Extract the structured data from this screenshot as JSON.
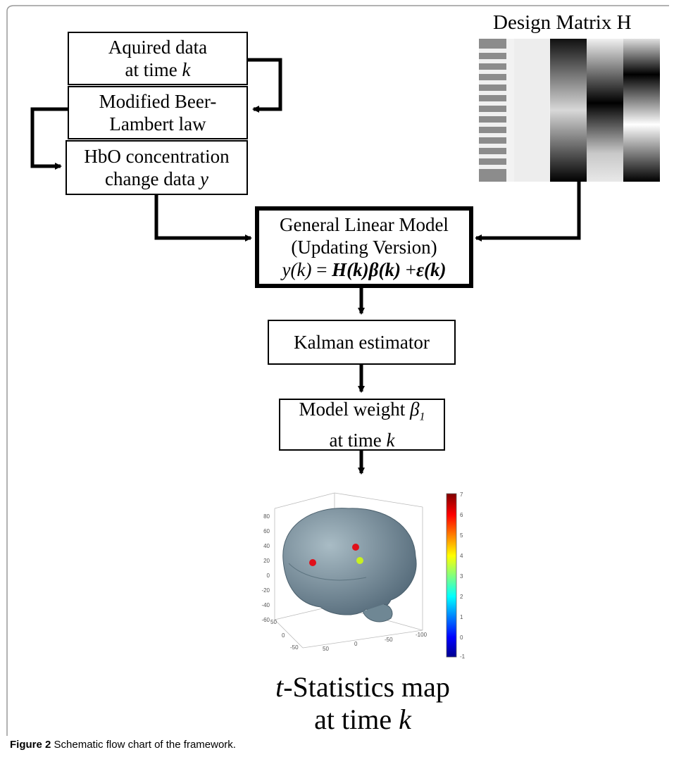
{
  "boxes": {
    "acquired_line1": "Aquired data",
    "acquired_line2_prefix": "at time ",
    "acquired_line2_var": "k",
    "beer_line1": "Modified Beer-",
    "beer_line2": "Lambert law",
    "hbo_line1": "HbO concentration",
    "hbo_line2_prefix": "change data ",
    "hbo_line2_var": "y",
    "glm_line1": "General Linear Model",
    "glm_line2": "(Updating Version)",
    "glm_eq_y": "y(k)",
    "glm_eq_eq": " = ",
    "glm_eq_H": "H(k)",
    "glm_eq_beta": "β(k)",
    "glm_eq_plus": " +",
    "glm_eq_eps": "ε(k)",
    "kalman": "Kalman estimator",
    "weight_line1_prefix": "Model weight ",
    "weight_line1_var": "β",
    "weight_line1_sub": "1",
    "weight_line2_prefix": "at time ",
    "weight_line2_var": "k"
  },
  "design_matrix": {
    "title": "Design Matrix H"
  },
  "brain_map": {
    "z_ticks": [
      "80",
      "60",
      "40",
      "20",
      "0",
      "-20",
      "-40",
      "-60"
    ],
    "y_ticks": [
      "50",
      "0",
      "-50"
    ],
    "x_ticks": [
      "50",
      "0",
      "-50",
      "-100"
    ],
    "colorbar_ticks": [
      "7",
      "6",
      "5",
      "4",
      "3",
      "2",
      "1",
      "0",
      "-1"
    ],
    "colors": {
      "brain": "#8fa6b2",
      "dot_red": "#e0101a",
      "dot_yellow": "#c8f020"
    }
  },
  "map_title": {
    "line1_var": "t",
    "line1_rest": "-Statistics map",
    "line2_prefix": "at time ",
    "line2_var": "k"
  },
  "caption": {
    "label": "Figure 2",
    "text": " Schematic flow chart of the framework."
  }
}
